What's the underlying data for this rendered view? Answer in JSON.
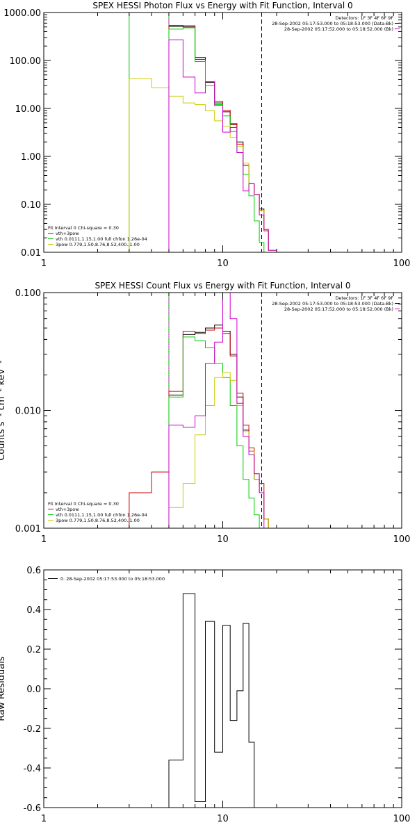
{
  "chart_data": [
    {
      "type": "line",
      "step": true,
      "title": "SPEX HESSI Photon Flux vs Energy with Fit Function, Interval 0",
      "xlabel": "",
      "ylabel": "",
      "xscale": "log",
      "yscale": "log",
      "xlim": [
        1,
        100
      ],
      "ylim": [
        0.01,
        1000
      ],
      "xticks": [
        {
          "v": 1,
          "label": "1"
        },
        {
          "v": 10,
          "label": "10"
        },
        {
          "v": 100,
          "label": "100"
        }
      ],
      "yticks": [
        {
          "v": 0.01,
          "label": "0.01"
        },
        {
          "v": 0.1,
          "label": "0.10"
        },
        {
          "v": 1,
          "label": "1.00"
        },
        {
          "v": 10,
          "label": "10.00"
        },
        {
          "v": 100,
          "label": "100.00"
        },
        {
          "v": 1000,
          "label": "1000.00"
        }
      ],
      "header": [
        "Detectors: 1F 3F 4F 6F 9F",
        "28-Sep-2002 05:17:53.000 to 05:18:53.000 (Data-Bk)",
        "28-Sep-2002 05:17:52.000 to 05:18:52.000 (Bk)"
      ],
      "header_colors": [
        "",
        "#000000",
        "#cc00cc"
      ],
      "fit_info": "Fit Interval  0   Chi-square = 0.30",
      "legend": [
        {
          "label": "vth+3pow",
          "color": "#cc0000"
        },
        {
          "label": "vth 0.0111,1.15,1.00  full chfon 1.26e-04",
          "color": "#00cc00"
        },
        {
          "label": "3pow 0.779,1.50,8.76,8.52,400.,1.00",
          "color": "#cccc00"
        }
      ],
      "edges": [
        3.0,
        4.0,
        5.0,
        6.0,
        7.0,
        8.0,
        9.0,
        10.0,
        11.0,
        12.0,
        13.0,
        14.0,
        15.0,
        16.0,
        17.0,
        18.0,
        20.0
      ],
      "vlines": [
        {
          "x": 3.0,
          "color": "#00cc00",
          "style": "solid"
        },
        {
          "x": 5.0,
          "color": "#00cc00",
          "style": "solid"
        },
        {
          "x": 5.0,
          "color": "#cc00cc",
          "style": "dotted"
        },
        {
          "x": 16.5,
          "color": "#000000",
          "style": "dashed"
        }
      ],
      "series": [
        {
          "name": "Data-Bk",
          "color": "#000000",
          "values": [
            null,
            null,
            510,
            500,
            115,
            35,
            13,
            8.5,
            4.8,
            2.0,
            0.65,
            0.27,
            0.16,
            0.08,
            0.03,
            0.011
          ]
        },
        {
          "name": "vth+3pow",
          "color": "#cc0000",
          "values": [
            null,
            null,
            540,
            530,
            105,
            36,
            14,
            9.2,
            4.6,
            1.8,
            0.65,
            0.27,
            0.16,
            0.075,
            0.028,
            0.011
          ]
        },
        {
          "name": "vth",
          "color": "#00cc00",
          "values": [
            null,
            null,
            450,
            480,
            95,
            30,
            12,
            7.0,
            3.3,
            1.2,
            0.42,
            0.15,
            0.045,
            0.016,
            null,
            null
          ]
        },
        {
          "name": "3pow",
          "color": "#cccc00",
          "values": [
            42,
            27,
            18,
            13,
            12,
            9.0,
            5.5,
            4.2,
            2.5,
            1.6,
            0.72,
            0.27,
            0.16,
            0.075,
            0.03,
            0.011
          ]
        },
        {
          "name": "Bk",
          "color": "#cc00cc",
          "values": [
            null,
            null,
            270,
            45,
            21,
            36,
            11.5,
            3.2,
            4.0,
            1.2,
            0.19,
            0.27,
            0.16,
            0.06,
            0.03,
            0.011
          ]
        }
      ]
    },
    {
      "type": "line",
      "step": true,
      "title": "SPEX HESSI Count Flux vs Energy with Fit Function, Interval 0",
      "xlabel": "",
      "ylabel": "Counts s⁻¹ cm⁻² keV⁻¹",
      "xscale": "log",
      "yscale": "log",
      "xlim": [
        1,
        100
      ],
      "ylim": [
        0.001,
        0.1
      ],
      "xticks": [
        {
          "v": 1,
          "label": "1"
        },
        {
          "v": 10,
          "label": "10"
        },
        {
          "v": 100,
          "label": "100"
        }
      ],
      "yticks": [
        {
          "v": 0.001,
          "label": "0.001"
        },
        {
          "v": 0.01,
          "label": "0.010"
        },
        {
          "v": 0.1,
          "label": "0.100"
        }
      ],
      "header": [
        "Detectors: 1F 3F 4F 6F 9F",
        "28-Sep-2002 05:17:53.000 to 05:18:53.000 (Data-Bk)",
        "28-Sep-2002 05:17:52.000 to 05:18:52.000 (Bk)"
      ],
      "header_colors": [
        "",
        "#000000",
        "#cc00cc"
      ],
      "fit_info": "Fit Interval  0   Chi-square = 0.30",
      "legend": [
        {
          "label": "vth+3pow",
          "color": "#cc0000"
        },
        {
          "label": "vth 0.0111,1.15,1.00  full chfon 1.26e-04",
          "color": "#00cc00"
        },
        {
          "label": "3pow 0.779,1.50,8.76,8.52,400.,1.00",
          "color": "#cccc00"
        }
      ],
      "edges": [
        3.0,
        4.0,
        5.0,
        6.0,
        7.0,
        8.0,
        9.0,
        10.0,
        11.0,
        12.0,
        13.0,
        14.0,
        15.0,
        16.0,
        17.0,
        18.0,
        20.0
      ],
      "vlines": [
        {
          "x": 5.0,
          "color": "#000000",
          "style": "dotted"
        },
        {
          "x": 5.0,
          "color": "#00cc00",
          "style": "solid"
        },
        {
          "x": 5.0,
          "color": "#cc00cc",
          "style": "dotted"
        },
        {
          "x": 16.5,
          "color": "#000000",
          "style": "dashed"
        }
      ],
      "series": [
        {
          "name": "Data-Bk",
          "color": "#000000",
          "values": [
            null,
            null,
            0.0135,
            0.044,
            0.046,
            0.05,
            0.053,
            0.047,
            0.03,
            0.013,
            0.0068,
            0.0045,
            0.0026,
            0.002,
            0.0012,
            null
          ]
        },
        {
          "name": "vth+3pow",
          "color": "#cc0000",
          "values": [
            0.002,
            0.003,
            0.0145,
            0.047,
            0.045,
            0.048,
            0.05,
            0.045,
            0.029,
            0.014,
            0.0075,
            0.0048,
            0.0029,
            0.0024,
            0.0012,
            null
          ]
        },
        {
          "name": "vth",
          "color": "#00cc00",
          "values": [
            null,
            null,
            0.013,
            0.042,
            0.039,
            0.034,
            0.025,
            0.019,
            0.011,
            0.005,
            0.0026,
            0.0018,
            0.0013,
            null,
            null,
            null
          ]
        },
        {
          "name": "3pow",
          "color": "#cccc00",
          "values": [
            null,
            null,
            0.0015,
            0.0024,
            0.0062,
            0.011,
            0.019,
            0.021,
            0.018,
            0.011,
            0.0066,
            0.0045,
            0.0026,
            0.002,
            0.0012,
            null
          ]
        },
        {
          "name": "Bk",
          "color": "#cc00cc",
          "values": [
            null,
            null,
            0.0075,
            0.0072,
            0.009,
            0.025,
            0.038,
            0.1,
            0.06,
            0.0115,
            0.006,
            0.0042,
            0.0029,
            0.002,
            null,
            null
          ]
        }
      ]
    },
    {
      "type": "line",
      "step": true,
      "title": "",
      "xlabel": "",
      "ylabel": "Raw Residuals",
      "xscale": "log",
      "yscale": "linear",
      "xlim": [
        1,
        100
      ],
      "ylim": [
        -0.6,
        0.6
      ],
      "xticks": [
        {
          "v": 1,
          "label": "1"
        },
        {
          "v": 10,
          "label": "10"
        },
        {
          "v": 100,
          "label": "100"
        }
      ],
      "yticks": [
        {
          "v": -0.6,
          "label": "-0.6"
        },
        {
          "v": -0.4,
          "label": "-0.4"
        },
        {
          "v": -0.2,
          "label": "-0.2"
        },
        {
          "v": 0.0,
          "label": "0.0"
        },
        {
          "v": 0.2,
          "label": "0.2"
        },
        {
          "v": 0.4,
          "label": "0.4"
        },
        {
          "v": 0.6,
          "label": "0.6"
        }
      ],
      "header": [],
      "header_colors": [],
      "fit_info": "",
      "legend": [
        {
          "label": "0. 28-Sep-2002 05:17:53.000 to 05:18:53.000",
          "color": "#000000"
        }
      ],
      "edges": [
        5.0,
        6.0,
        7.0,
        8.0,
        9.0,
        10.0,
        11.0,
        12.0,
        13.0,
        14.0,
        15.0,
        16.5
      ],
      "vlines": [],
      "series": [
        {
          "name": "residuals",
          "color": "#000000",
          "values": [
            -0.36,
            0.48,
            -0.57,
            0.34,
            -0.32,
            0.32,
            -0.16,
            -0.01,
            0.33,
            -0.27,
            -0.6
          ]
        }
      ]
    }
  ]
}
